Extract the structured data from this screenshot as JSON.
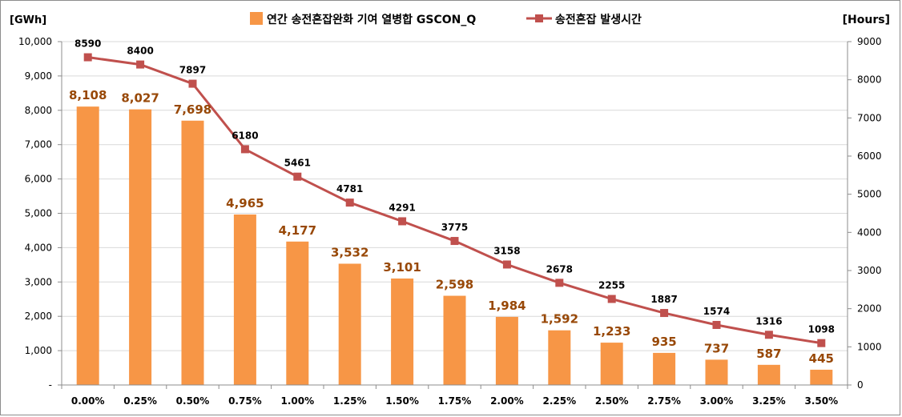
{
  "chart_data": {
    "type": "bar",
    "categories": [
      "0.00%",
      "0.25%",
      "0.50%",
      "0.75%",
      "1.00%",
      "1.25%",
      "1.50%",
      "1.75%",
      "2.00%",
      "2.25%",
      "2.50%",
      "2.75%",
      "3.00%",
      "3.25%",
      "3.50%"
    ],
    "series": [
      {
        "name": "연간 송전혼잡완화 기여 열병합 GSCON_Q",
        "type": "bar",
        "axis": "left",
        "values": [
          8108,
          8027,
          7698,
          4965,
          4177,
          3532,
          3101,
          2598,
          1984,
          1592,
          1233,
          935,
          737,
          587,
          445
        ],
        "labels": [
          "8,108",
          "8,027",
          "7,698",
          "4,965",
          "4,177",
          "3,532",
          "3,101",
          "2,598",
          "1,984",
          "1,592",
          "1,233",
          "935",
          "737",
          "587",
          "445"
        ],
        "color": "#f79646",
        "label_color": "#984807"
      },
      {
        "name": "송전혼잡 발생시간",
        "type": "line",
        "axis": "right",
        "values": [
          8590,
          8400,
          7897,
          6180,
          5461,
          4781,
          4291,
          3775,
          3158,
          2678,
          2255,
          1887,
          1574,
          1316,
          1098
        ],
        "labels": [
          "8590",
          "8400",
          "7897",
          "6180",
          "5461",
          "4781",
          "4291",
          "3775",
          "3158",
          "2678",
          "2255",
          "1887",
          "1574",
          "1316",
          "1098"
        ],
        "color": "#c0504d",
        "label_color": "#000000"
      }
    ],
    "y_left": {
      "unit": "[GWh]",
      "ylim": [
        0,
        10000
      ],
      "ticks": [
        0,
        1000,
        2000,
        3000,
        4000,
        5000,
        6000,
        7000,
        8000,
        9000,
        10000
      ],
      "tick_labels": [
        "-",
        "1,000",
        "2,000",
        "3,000",
        "4,000",
        "5,000",
        "6,000",
        "7,000",
        "8,000",
        "9,000",
        "10,000"
      ]
    },
    "y_right": {
      "unit": "[Hours]",
      "ylim": [
        0,
        9000
      ],
      "ticks": [
        0,
        1000,
        2000,
        3000,
        4000,
        5000,
        6000,
        7000,
        8000,
        9000
      ],
      "tick_labels": [
        "0",
        "1000",
        "2000",
        "3000",
        "4000",
        "5000",
        "6000",
        "7000",
        "8000",
        "9000"
      ]
    },
    "grid": true,
    "legend": "top-center",
    "title": "",
    "xlabel": ""
  }
}
